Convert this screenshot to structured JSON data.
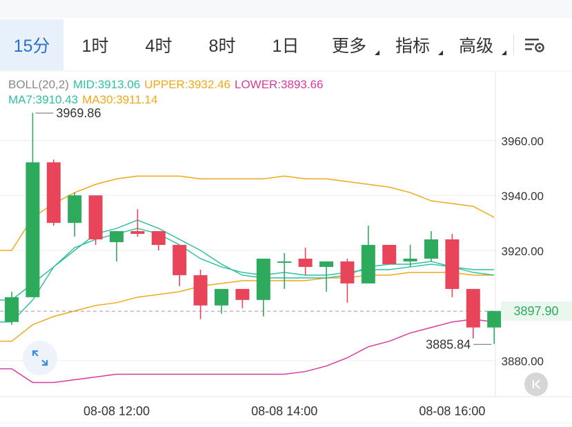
{
  "tabs": [
    {
      "label": "15分",
      "active": true,
      "dropdown": false
    },
    {
      "label": "1时",
      "active": false,
      "dropdown": false
    },
    {
      "label": "4时",
      "active": false,
      "dropdown": false
    },
    {
      "label": "8时",
      "active": false,
      "dropdown": false
    },
    {
      "label": "1日",
      "active": false,
      "dropdown": false
    },
    {
      "label": "更多",
      "active": false,
      "dropdown": true
    },
    {
      "label": "指标",
      "active": false,
      "dropdown": true
    },
    {
      "label": "高级",
      "active": false,
      "dropdown": true
    }
  ],
  "settings_icon": "chart-settings-icon",
  "legend": {
    "boll": "BOLL(20,2)",
    "mid": "MID:3913.06",
    "upper": "UPPER:3932.46",
    "lower": "LOWER:3893.66",
    "ma7": "MA7:3910.43",
    "ma30": "MA30:3911.14"
  },
  "colors": {
    "up": "#2eaa5c",
    "down": "#e8455a",
    "mid": "#2fc0a0",
    "upper": "#f0a81a",
    "lower": "#d63ba0",
    "ma7": "#2fc0a0",
    "ma30": "#f0a81a",
    "active_tab": "#2a6fc9",
    "price_tag": "#2eaa5c"
  },
  "chart_data": {
    "type": "candlestick",
    "ylim": [
      3873,
      3983
    ],
    "y_ticks": [
      3960,
      3940,
      3920,
      3880
    ],
    "y_tick_labels": [
      "3960.00",
      "3940.00",
      "3920.00",
      "3880.00"
    ],
    "x_labels": [
      "08-08 12:00",
      "08-08 14:00",
      "08-08 16:00"
    ],
    "x_label_index": [
      5,
      13,
      21
    ],
    "current_price": 3897.9,
    "current_price_label": "3897.90",
    "high_marker": {
      "value": 3969.86,
      "label": "3969.86",
      "index": 1
    },
    "low_marker": {
      "value": 3885.84,
      "label": "3885.84",
      "index": 23
    },
    "candles": [
      {
        "o": 3894,
        "h": 3905,
        "l": 3893,
        "c": 3903
      },
      {
        "o": 3903,
        "h": 3970,
        "l": 3903,
        "c": 3952
      },
      {
        "o": 3952,
        "h": 3953,
        "l": 3929,
        "c": 3930
      },
      {
        "o": 3930,
        "h": 3941,
        "l": 3925,
        "c": 3940
      },
      {
        "o": 3940,
        "h": 3940,
        "l": 3922,
        "c": 3924
      },
      {
        "o": 3923,
        "h": 3927,
        "l": 3916,
        "c": 3927
      },
      {
        "o": 3927,
        "h": 3935,
        "l": 3925,
        "c": 3926
      },
      {
        "o": 3927,
        "h": 3927,
        "l": 3920,
        "c": 3922
      },
      {
        "o": 3922,
        "h": 3922,
        "l": 3907,
        "c": 3911
      },
      {
        "o": 3911,
        "h": 3913,
        "l": 3895,
        "c": 3900
      },
      {
        "o": 3900,
        "h": 3906,
        "l": 3897,
        "c": 3906
      },
      {
        "o": 3906,
        "h": 3906,
        "l": 3899,
        "c": 3902
      },
      {
        "o": 3902,
        "h": 3917,
        "l": 3896,
        "c": 3917
      },
      {
        "o": 3916,
        "h": 3919,
        "l": 3906,
        "c": 3916
      },
      {
        "o": 3917,
        "h": 3921,
        "l": 3911,
        "c": 3914
      },
      {
        "o": 3914,
        "h": 3916,
        "l": 3905,
        "c": 3916
      },
      {
        "o": 3916,
        "h": 3917,
        "l": 3901,
        "c": 3908
      },
      {
        "o": 3908,
        "h": 3929,
        "l": 3908,
        "c": 3922
      },
      {
        "o": 3922,
        "h": 3922,
        "l": 3915,
        "c": 3915
      },
      {
        "o": 3916,
        "h": 3922,
        "l": 3914,
        "c": 3917
      },
      {
        "o": 3917,
        "h": 3927,
        "l": 3916,
        "c": 3924
      },
      {
        "o": 3924,
        "h": 3926,
        "l": 3903,
        "c": 3906
      },
      {
        "o": 3906,
        "h": 3906,
        "l": 3888,
        "c": 3892
      },
      {
        "o": 3892,
        "h": 3898,
        "l": 3886,
        "c": 3898
      }
    ],
    "upper": [
      3920,
      3932,
      3937,
      3941,
      3944,
      3946,
      3947,
      3947,
      3947,
      3946,
      3946,
      3946,
      3946,
      3947,
      3946,
      3946,
      3945,
      3944,
      3943,
      3941,
      3938,
      3937,
      3936,
      3932
    ],
    "mid": [
      3894,
      3902,
      3914,
      3921,
      3924,
      3926,
      3928,
      3926,
      3922,
      3917,
      3914,
      3912,
      3911,
      3912,
      3911,
      3911,
      3912,
      3913,
      3913,
      3914,
      3915,
      3914,
      3913,
      3913
    ],
    "lower": [
      3877,
      3872,
      3872,
      3873,
      3874,
      3875,
      3875,
      3875,
      3875,
      3875,
      3875,
      3875,
      3875,
      3875,
      3876,
      3878,
      3881,
      3885,
      3887,
      3890,
      3892,
      3894,
      3895,
      3894
    ],
    "ma7": [
      3902,
      3908,
      3914,
      3920,
      3926,
      3928,
      3931,
      3928,
      3924,
      3920,
      3915,
      3911,
      3910,
      3910,
      3910,
      3910,
      3911,
      3914,
      3915,
      3915,
      3916,
      3914,
      3912,
      3911
    ],
    "ma30": [
      3887,
      3893,
      3896,
      3898,
      3900,
      3901,
      3903,
      3904,
      3905,
      3907,
      3908,
      3909,
      3909,
      3909,
      3909,
      3910,
      3910,
      3911,
      3911,
      3912,
      3912,
      3912,
      3911,
      3911
    ]
  }
}
